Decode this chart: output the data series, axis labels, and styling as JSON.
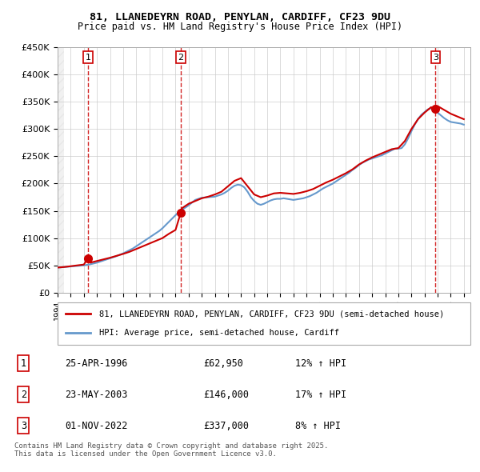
{
  "title1": "81, LLANEDEYRN ROAD, PENYLAN, CARDIFF, CF23 9DU",
  "title2": "Price paid vs. HM Land Registry's House Price Index (HPI)",
  "ylabel_ticks": [
    "£0",
    "£50K",
    "£100K",
    "£150K",
    "£200K",
    "£250K",
    "£300K",
    "£350K",
    "£400K",
    "£450K"
  ],
  "ytick_vals": [
    0,
    50000,
    100000,
    150000,
    200000,
    250000,
    300000,
    350000,
    400000,
    450000
  ],
  "xmin": 1994.0,
  "xmax": 2025.5,
  "ymin": 0,
  "ymax": 450000,
  "property_color": "#cc0000",
  "hpi_color": "#6699cc",
  "sale_dates": [
    1996.32,
    2003.39,
    2022.84
  ],
  "sale_prices": [
    62950,
    146000,
    337000
  ],
  "sale_labels": [
    "1",
    "2",
    "3"
  ],
  "vline_color": "#cc0000",
  "legend_property": "81, LLANEDEYRN ROAD, PENYLAN, CARDIFF, CF23 9DU (semi-detached house)",
  "legend_hpi": "HPI: Average price, semi-detached house, Cardiff",
  "table_rows": [
    [
      "1",
      "25-APR-1996",
      "£62,950",
      "12% ↑ HPI"
    ],
    [
      "2",
      "23-MAY-2003",
      "£146,000",
      "17% ↑ HPI"
    ],
    [
      "3",
      "01-NOV-2022",
      "£337,000",
      "8% ↑ HPI"
    ]
  ],
  "footer": "Contains HM Land Registry data © Crown copyright and database right 2025.\nThis data is licensed under the Open Government Licence v3.0.",
  "hpi_x": [
    1994.0,
    1994.25,
    1994.5,
    1994.75,
    1995.0,
    1995.25,
    1995.5,
    1995.75,
    1996.0,
    1996.25,
    1996.5,
    1996.75,
    1997.0,
    1997.25,
    1997.5,
    1997.75,
    1998.0,
    1998.25,
    1998.5,
    1998.75,
    1999.0,
    1999.25,
    1999.5,
    1999.75,
    2000.0,
    2000.25,
    2000.5,
    2000.75,
    2001.0,
    2001.25,
    2001.5,
    2001.75,
    2002.0,
    2002.25,
    2002.5,
    2002.75,
    2003.0,
    2003.25,
    2003.5,
    2003.75,
    2004.0,
    2004.25,
    2004.5,
    2004.75,
    2005.0,
    2005.25,
    2005.5,
    2005.75,
    2006.0,
    2006.25,
    2006.5,
    2006.75,
    2007.0,
    2007.25,
    2007.5,
    2007.75,
    2008.0,
    2008.25,
    2008.5,
    2008.75,
    2009.0,
    2009.25,
    2009.5,
    2009.75,
    2010.0,
    2010.25,
    2010.5,
    2010.75,
    2011.0,
    2011.25,
    2011.5,
    2011.75,
    2012.0,
    2012.25,
    2012.5,
    2012.75,
    2013.0,
    2013.25,
    2013.5,
    2013.75,
    2014.0,
    2014.25,
    2014.5,
    2014.75,
    2015.0,
    2015.25,
    2015.5,
    2015.75,
    2016.0,
    2016.25,
    2016.5,
    2016.75,
    2017.0,
    2017.25,
    2017.5,
    2017.75,
    2018.0,
    2018.25,
    2018.5,
    2018.75,
    2019.0,
    2019.25,
    2019.5,
    2019.75,
    2020.0,
    2020.25,
    2020.5,
    2020.75,
    2021.0,
    2021.25,
    2021.5,
    2021.75,
    2022.0,
    2022.25,
    2022.5,
    2022.75,
    2023.0,
    2023.25,
    2023.5,
    2023.75,
    2024.0,
    2024.25,
    2024.5,
    2024.75,
    2025.0
  ],
  "hpi_y": [
    46000,
    46500,
    47000,
    47500,
    48000,
    48500,
    49000,
    49500,
    50000,
    51000,
    52000,
    53500,
    55000,
    57000,
    59000,
    61000,
    63000,
    65000,
    67000,
    69500,
    72000,
    75000,
    78000,
    81000,
    85000,
    89000,
    93000,
    97000,
    101000,
    105000,
    109000,
    113000,
    118000,
    124000,
    130000,
    136000,
    142000,
    148000,
    152000,
    156000,
    160000,
    165000,
    170000,
    172000,
    174000,
    174500,
    175000,
    175500,
    176000,
    178000,
    180000,
    183000,
    187000,
    192000,
    196000,
    198000,
    197000,
    193000,
    185000,
    175000,
    168000,
    163000,
    161000,
    163000,
    166000,
    169000,
    171000,
    172000,
    172000,
    173000,
    172000,
    171000,
    170000,
    171000,
    172000,
    173000,
    175000,
    177000,
    180000,
    183000,
    187000,
    191000,
    194000,
    197000,
    200000,
    204000,
    208000,
    212000,
    216000,
    220000,
    225000,
    229000,
    234000,
    238000,
    241000,
    244000,
    246000,
    248000,
    250000,
    252000,
    255000,
    258000,
    261000,
    264000,
    264000,
    265000,
    272000,
    283000,
    296000,
    308000,
    318000,
    326000,
    331000,
    336000,
    338000,
    335000,
    330000,
    325000,
    320000,
    316000,
    313000,
    312000,
    311000,
    310000,
    308000
  ],
  "property_x": [
    1994.0,
    1994.5,
    1995.0,
    1995.5,
    1996.0,
    1996.32,
    1996.5,
    1997.0,
    1997.5,
    1998.0,
    1998.5,
    1999.0,
    1999.5,
    2000.0,
    2000.5,
    2001.0,
    2001.5,
    2002.0,
    2002.5,
    2003.0,
    2003.39,
    2003.5,
    2004.0,
    2004.5,
    2005.0,
    2005.5,
    2006.0,
    2006.5,
    2007.0,
    2007.5,
    2008.0,
    2008.5,
    2009.0,
    2009.5,
    2010.0,
    2010.5,
    2011.0,
    2011.5,
    2012.0,
    2012.5,
    2013.0,
    2013.5,
    2014.0,
    2014.5,
    2015.0,
    2015.5,
    2016.0,
    2016.5,
    2017.0,
    2017.5,
    2018.0,
    2018.5,
    2019.0,
    2019.5,
    2020.0,
    2020.5,
    2021.0,
    2021.5,
    2022.0,
    2022.5,
    2022.84,
    2023.0,
    2023.5,
    2024.0,
    2024.5,
    2025.0
  ],
  "property_y": [
    46000,
    47000,
    48500,
    50000,
    51500,
    62950,
    55000,
    58000,
    61000,
    64000,
    67500,
    71000,
    75000,
    80000,
    85000,
    90000,
    95000,
    100000,
    108000,
    115000,
    146000,
    155000,
    163000,
    168000,
    173000,
    176000,
    180000,
    185000,
    195000,
    205000,
    210000,
    195000,
    180000,
    175000,
    178000,
    182000,
    183000,
    182000,
    181000,
    183000,
    186000,
    190000,
    196000,
    202000,
    207000,
    213000,
    219000,
    226000,
    235000,
    242000,
    248000,
    253000,
    258000,
    263000,
    265000,
    278000,
    300000,
    318000,
    330000,
    340000,
    337000,
    342000,
    335000,
    328000,
    323000,
    318000
  ]
}
